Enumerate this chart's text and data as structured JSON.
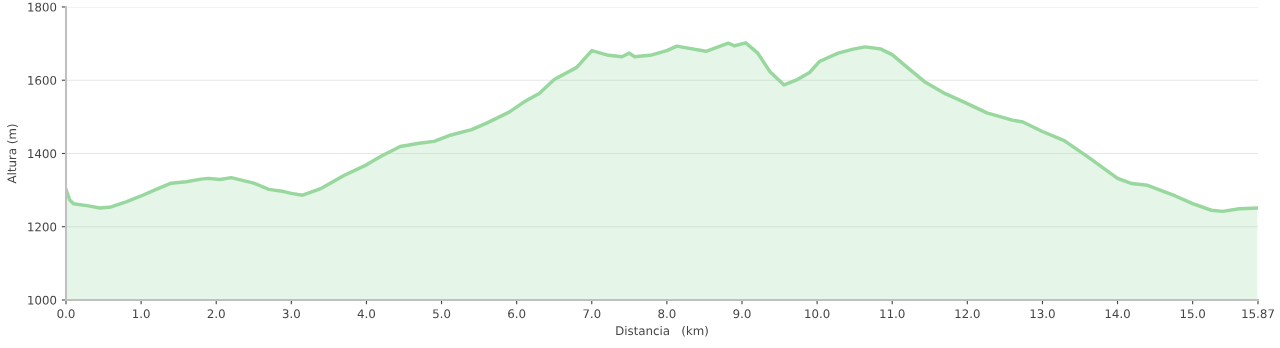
{
  "chart_data": {
    "type": "area",
    "xlabel": "Distancia   (km)",
    "ylabel": "Altura (m)",
    "x": [
      0,
      0.05,
      0.1,
      0.3,
      0.45,
      0.6,
      0.8,
      1.0,
      1.2,
      1.4,
      1.6,
      1.8,
      1.9,
      2.05,
      2.2,
      2.5,
      2.7,
      2.9,
      3.0,
      3.15,
      3.4,
      3.7,
      4.0,
      4.2,
      4.45,
      4.7,
      4.9,
      5.1,
      5.4,
      5.6,
      5.9,
      6.1,
      6.3,
      6.5,
      6.8,
      7.0,
      7.2,
      7.4,
      7.5,
      7.57,
      7.8,
      8.0,
      8.13,
      8.52,
      8.82,
      8.9,
      9.05,
      9.21,
      9.37,
      9.56,
      9.72,
      9.9,
      10.03,
      10.28,
      10.48,
      10.64,
      10.85,
      11.0,
      11.2,
      11.43,
      11.7,
      12.0,
      12.26,
      12.6,
      12.74,
      13.0,
      13.29,
      13.61,
      14.0,
      14.19,
      14.4,
      14.77,
      15.0,
      15.25,
      15.4,
      15.62,
      15.86
    ],
    "series": [
      {
        "color": "#98d89e",
        "values": [
          1302,
          1273,
          1263,
          1257,
          1251,
          1254,
          1268,
          1284,
          1302,
          1319,
          1323,
          1330,
          1332,
          1329,
          1334,
          1319,
          1302,
          1296,
          1291,
          1286,
          1305,
          1340,
          1369,
          1393,
          1419,
          1428,
          1433,
          1449,
          1465,
          1483,
          1513,
          1541,
          1564,
          1602,
          1635,
          1681,
          1669,
          1664,
          1674,
          1664,
          1669,
          1681,
          1693,
          1679,
          1701,
          1694,
          1702,
          1674,
          1624,
          1587,
          1600,
          1621,
          1651,
          1674,
          1685,
          1691,
          1685,
          1670,
          1635,
          1596,
          1564,
          1536,
          1511,
          1491,
          1486,
          1460,
          1435,
          1390,
          1332,
          1318,
          1313,
          1284,
          1263,
          1245,
          1242,
          1249,
          1251
        ]
      }
    ],
    "xlim": [
      0,
      15.87
    ],
    "ylim": [
      1000,
      1800
    ],
    "xticks": [
      {
        "value": 0,
        "label": "0.0"
      },
      {
        "value": 1,
        "label": "1.0"
      },
      {
        "value": 2,
        "label": "2.0"
      },
      {
        "value": 3,
        "label": "3.0"
      },
      {
        "value": 4,
        "label": "4.0"
      },
      {
        "value": 5,
        "label": "5.0"
      },
      {
        "value": 6,
        "label": "6.0"
      },
      {
        "value": 7,
        "label": "7.0"
      },
      {
        "value": 8,
        "label": "8.0"
      },
      {
        "value": 9,
        "label": "9.0"
      },
      {
        "value": 10,
        "label": "10.0"
      },
      {
        "value": 11,
        "label": "11.0"
      },
      {
        "value": 12,
        "label": "12.0"
      },
      {
        "value": 13,
        "label": "13.0"
      },
      {
        "value": 14,
        "label": "14.0"
      },
      {
        "value": 15,
        "label": "15.0"
      },
      15.87
    ],
    "yticks": [
      1000,
      1200,
      1400,
      1600,
      1800
    ],
    "grid": "y",
    "legend": false
  }
}
